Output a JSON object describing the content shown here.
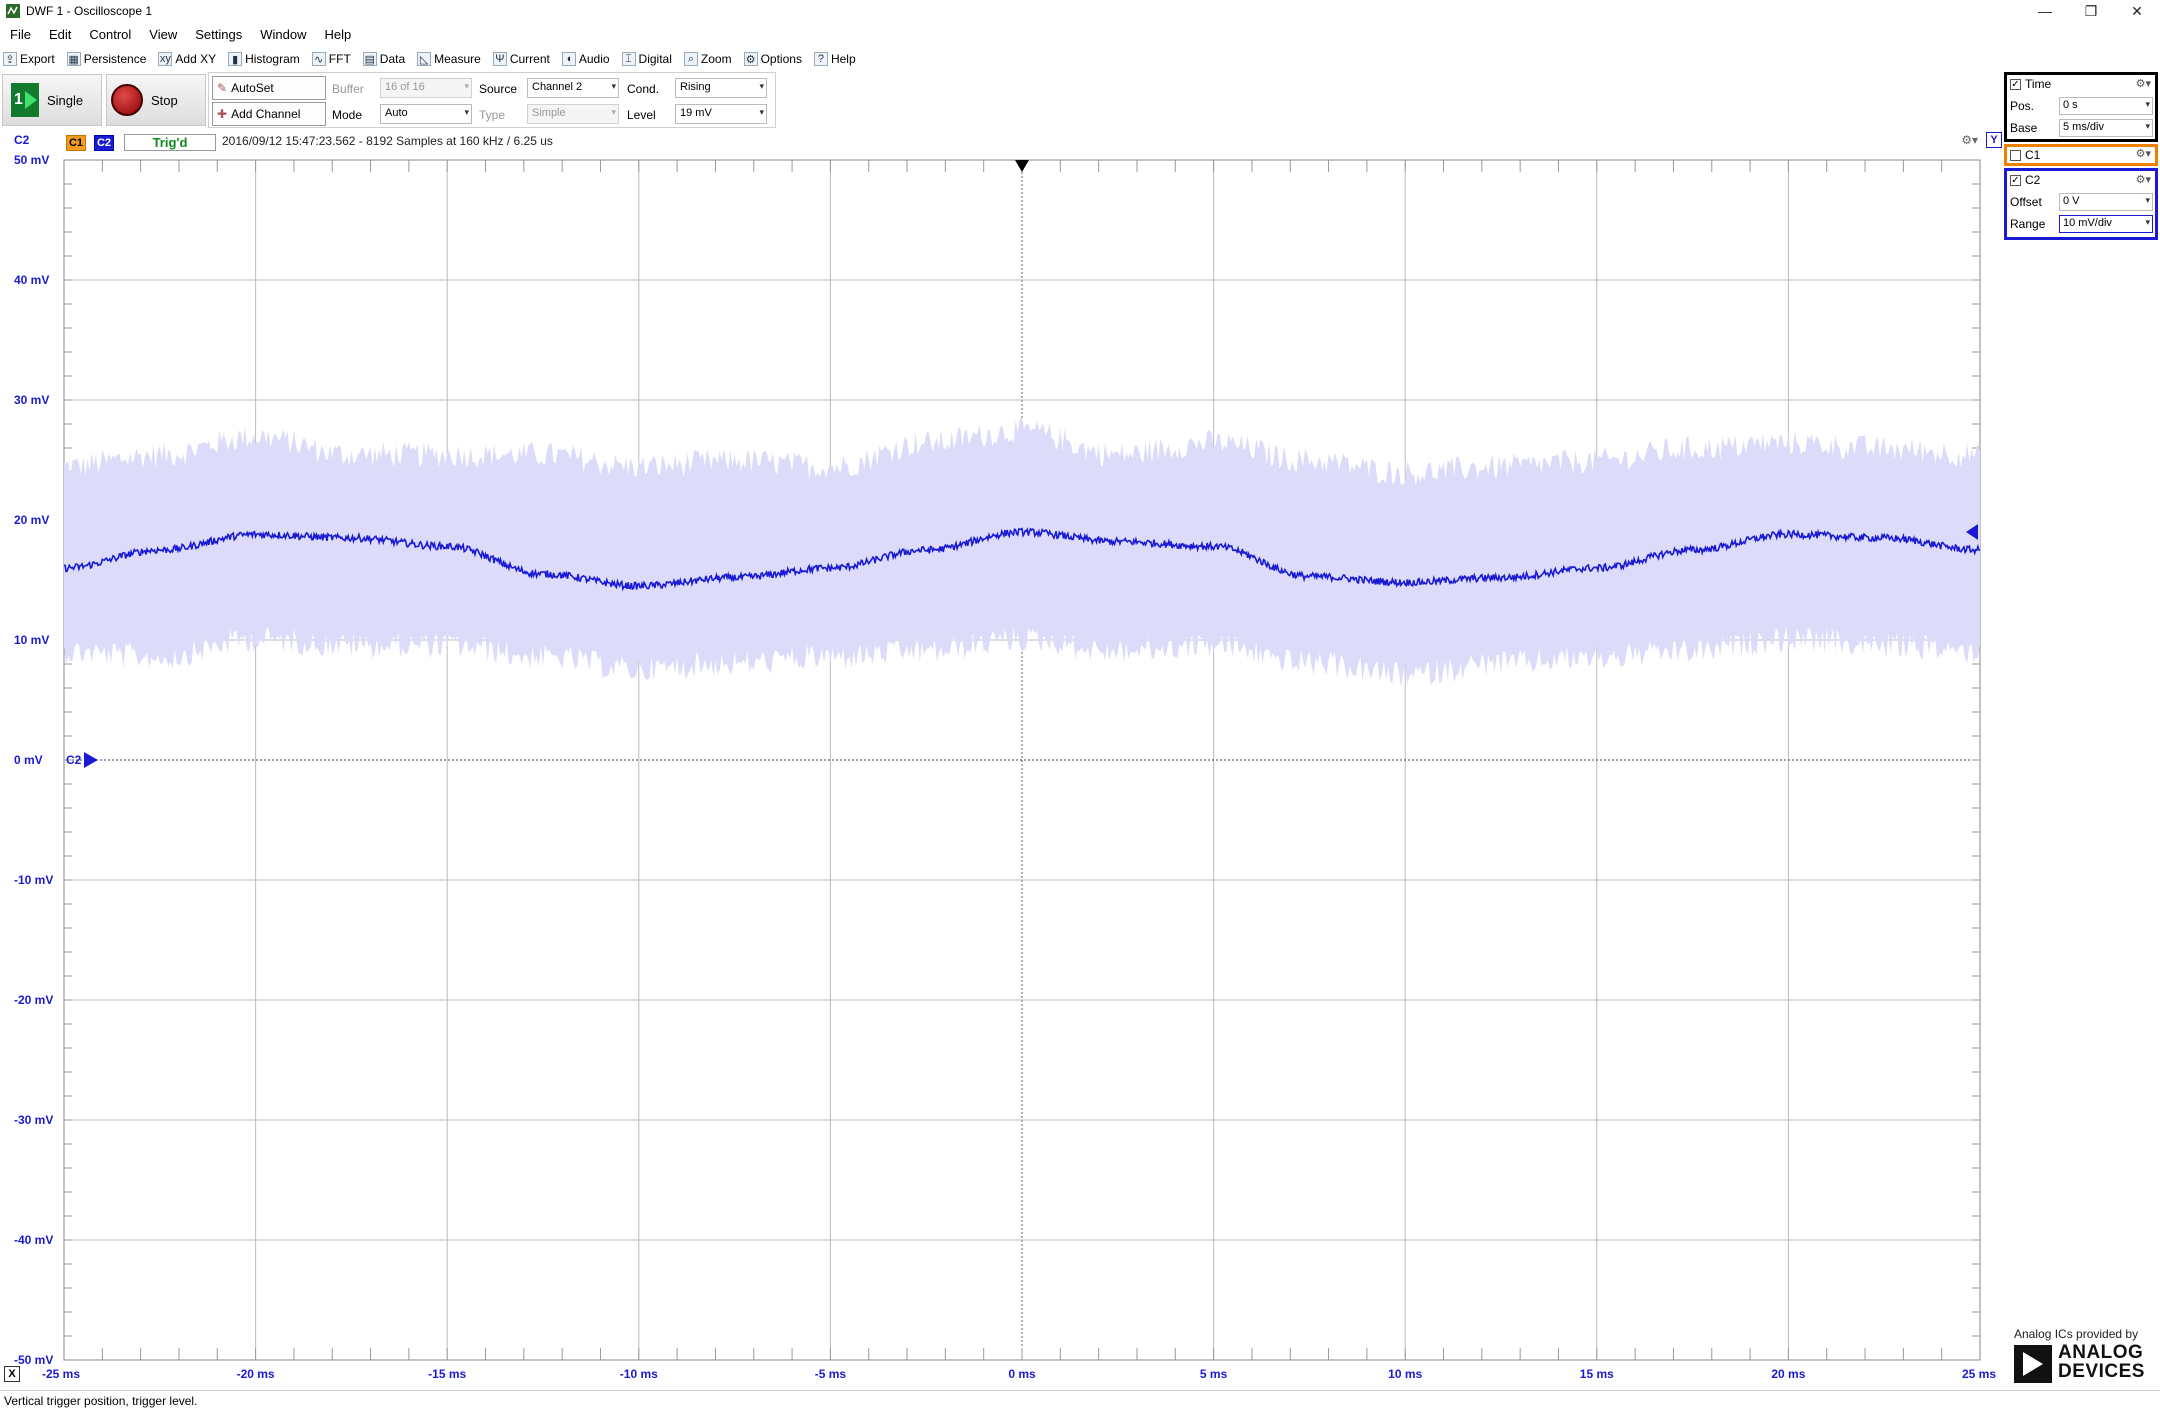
{
  "window": {
    "title": "DWF 1 - Oscilloscope 1",
    "minimize": "—",
    "restore": "❐",
    "close": "✕"
  },
  "menu": [
    "File",
    "Edit",
    "Control",
    "View",
    "Settings",
    "Window",
    "Help"
  ],
  "toolbar": [
    {
      "label": "Export",
      "icon": "export-icon",
      "glyph": "⇪"
    },
    {
      "label": "Persistence",
      "icon": "persistence-icon",
      "glyph": "▦"
    },
    {
      "label": "Add XY",
      "icon": "add-xy-icon",
      "glyph": "xy"
    },
    {
      "label": "Histogram",
      "icon": "histogram-icon",
      "glyph": "▮"
    },
    {
      "label": "FFT",
      "icon": "fft-icon",
      "glyph": "∿"
    },
    {
      "label": "Data",
      "icon": "data-icon",
      "glyph": "▤"
    },
    {
      "label": "Measure",
      "icon": "measure-icon",
      "glyph": "◺"
    },
    {
      "label": "Current",
      "icon": "current-icon",
      "glyph": "Ψ"
    },
    {
      "label": "Audio",
      "icon": "audio-icon",
      "glyph": "◖"
    },
    {
      "label": "Digital",
      "icon": "digital-icon",
      "glyph": "⌶"
    },
    {
      "label": "Zoom",
      "icon": "zoom-icon",
      "glyph": "⌕"
    },
    {
      "label": "Options",
      "icon": "options-icon",
      "glyph": "⚙"
    },
    {
      "label": "Help",
      "icon": "help-icon",
      "glyph": "?"
    }
  ],
  "controls": {
    "single_label": "Single",
    "stop_label": "Stop",
    "autoset_label": "AutoSet",
    "add_channel_label": "Add Channel",
    "buffer_label": "Buffer",
    "buffer_value": "16 of 16",
    "mode_label": "Mode",
    "mode_value": "Auto",
    "source_label": "Source",
    "source_value": "Channel 2",
    "type_label": "Type",
    "type_value": "Simple",
    "cond_label": "Cond.",
    "cond_value": "Rising",
    "level_label": "Level",
    "level_value": "19 mV"
  },
  "infobar": {
    "channel_label": "C2",
    "chip_c1": "C1",
    "chip_c2": "C2",
    "trigger_status": "Trig'd",
    "acquisition": "2016/09/12 15:47:23.562 - 8192 Samples at 160 kHz / 6.25 us",
    "y_button": "Y",
    "x_button": "X",
    "c2_marker": "C2"
  },
  "side": {
    "time_title": "Time",
    "pos_label": "Pos.",
    "pos_value": "0 s",
    "base_label": "Base",
    "base_value": "5 ms/div",
    "c1_title": "C1",
    "c2_title": "C2",
    "offset_label": "Offset",
    "offset_value": "0 V",
    "range_label": "Range",
    "range_value": "10 mV/div"
  },
  "branding": {
    "provided_by": "Analog ICs provided by",
    "line1": "ANALOG",
    "line2": "DEVICES"
  },
  "status": "Vertical trigger position, trigger level.",
  "colors": {
    "channel2": "#1a1ad4",
    "channel1": "#f08000",
    "noise_band": "#dcdcfa",
    "trig_status": "#118a1e"
  },
  "chart_data": {
    "type": "line",
    "xlabel": "",
    "ylabel": "",
    "x_ticks": [
      "-25 ms",
      "-20 ms",
      "-15 ms",
      "-10 ms",
      "-5 ms",
      "0 ms",
      "5 ms",
      "10 ms",
      "15 ms",
      "20 ms",
      "25 ms"
    ],
    "y_ticks": [
      "50 mV",
      "40 mV",
      "30 mV",
      "20 mV",
      "10 mV",
      "0 mV",
      "-10 mV",
      "-20 mV",
      "-30 mV",
      "-40 mV",
      "-50 mV"
    ],
    "xlim": [
      -25,
      25
    ],
    "ylim": [
      -50,
      50
    ],
    "x_units": "ms",
    "y_units": "mV",
    "grid": true,
    "trigger_time": 0,
    "trigger_level": 19,
    "channel_offset": 0,
    "series": [
      {
        "name": "C2",
        "x": [
          -25,
          -22.5,
          -20,
          -17.5,
          -15,
          -12.5,
          -10,
          -7.5,
          -5,
          -2.5,
          0,
          2.5,
          5,
          7.5,
          10,
          12.5,
          15,
          17.5,
          20,
          22.5,
          25
        ],
        "y": [
          16,
          17.5,
          18.8,
          18.5,
          17.8,
          15.5,
          14.5,
          15.2,
          16,
          17.5,
          19,
          18.2,
          17.8,
          15.3,
          14.8,
          15.2,
          16,
          17.5,
          18.8,
          18.5,
          17.5
        ],
        "envelope_max": [
          24,
          25,
          26.5,
          25,
          25,
          25,
          24,
          24.5,
          24,
          26,
          27,
          25,
          26,
          24.5,
          23.5,
          24,
          24.5,
          25.5,
          26,
          25.5,
          25
        ],
        "envelope_min": [
          9.5,
          9,
          10.5,
          10,
          10,
          9,
          8,
          8.5,
          9,
          9.5,
          10.5,
          9.5,
          10,
          8.5,
          7.5,
          8.5,
          9,
          9.5,
          10.5,
          10,
          9.5
        ]
      }
    ]
  }
}
